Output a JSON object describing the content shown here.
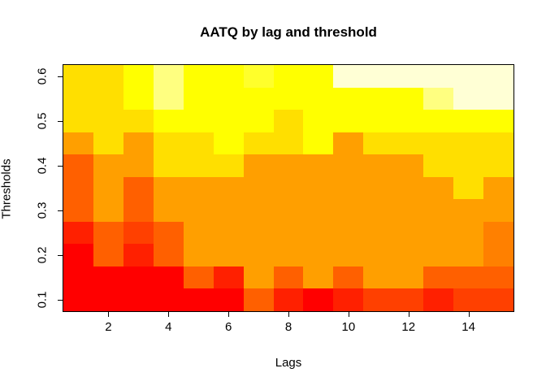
{
  "title": "AATQ by lag and threshold",
  "chart_data": {
    "type": "heatmap",
    "title": "AATQ by lag and threshold",
    "xlabel": "Lags",
    "ylabel": "Thresholds",
    "x_values": [
      1,
      2,
      3,
      4,
      5,
      6,
      7,
      8,
      9,
      10,
      11,
      12,
      13,
      14,
      15
    ],
    "y_values_bottom_to_top": [
      0.1,
      0.15,
      0.2,
      0.25,
      0.3,
      0.35,
      0.4,
      0.45,
      0.5,
      0.55,
      0.6
    ],
    "x_ticks": [
      "2",
      "4",
      "6",
      "8",
      "10",
      "12",
      "14"
    ],
    "x_tick_values": [
      2,
      4,
      6,
      8,
      10,
      12,
      14
    ],
    "y_ticks": [
      "0.1",
      "0.2",
      "0.3",
      "0.4",
      "0.5",
      "0.6"
    ],
    "y_tick_values": [
      0.1,
      0.2,
      0.3,
      0.4,
      0.5,
      0.6
    ],
    "xlim": [
      0.5,
      15.5
    ],
    "ylim": [
      0.075,
      0.625
    ],
    "grid_lines": false,
    "legend": "none",
    "border_color": "#000000",
    "palette_name": "heat-colors-12",
    "palette": [
      "#FF0000",
      "#FF2000",
      "#FF4000",
      "#FF6000",
      "#FF8000",
      "#FF9F00",
      "#FFBF00",
      "#FFDF00",
      "#FFFF00",
      "#FFFF2B",
      "#FFFF80",
      "#FFFFD5"
    ],
    "grid_rows_top_to_bottom_thresholds": [
      0.6,
      0.55,
      0.5,
      0.45,
      0.4,
      0.35,
      0.3,
      0.25,
      0.2,
      0.15,
      0.1
    ],
    "grid_rows_top_to_bottom": [
      [
        "#FFDF00",
        "#FFDF00",
        "#FFFF00",
        "#FFFF80",
        "#FFFF00",
        "#FFFF00",
        "#FFFF2B",
        "#FFFF00",
        "#FFFF00",
        "#FFFFD5",
        "#FFFFD5",
        "#FFFFD5",
        "#FFFFD5",
        "#FFFFD5",
        "#FFFFD5"
      ],
      [
        "#FFDF00",
        "#FFDF00",
        "#FFFF00",
        "#FFFF80",
        "#FFFF00",
        "#FFFF00",
        "#FFFF00",
        "#FFFF00",
        "#FFFF00",
        "#FFFF00",
        "#FFFF00",
        "#FFFF00",
        "#FFFF80",
        "#FFFFD5",
        "#FFFFD5"
      ],
      [
        "#FFDF00",
        "#FFDF00",
        "#FFDF00",
        "#FFFF00",
        "#FFFF00",
        "#FFFF00",
        "#FFFF00",
        "#FFDF00",
        "#FFFF00",
        "#FFFF00",
        "#FFFF00",
        "#FFFF00",
        "#FFFF00",
        "#FFFF00",
        "#FFFF00"
      ],
      [
        "#FF9F00",
        "#FFDF00",
        "#FF9F00",
        "#FFDF00",
        "#FFDF00",
        "#FFFF00",
        "#FFDF00",
        "#FFDF00",
        "#FFFF00",
        "#FF9F00",
        "#FFDF00",
        "#FFDF00",
        "#FFDF00",
        "#FFDF00",
        "#FFDF00"
      ],
      [
        "#FF6000",
        "#FF9F00",
        "#FF9F00",
        "#FFDF00",
        "#FFDF00",
        "#FFDF00",
        "#FF9F00",
        "#FF9F00",
        "#FF9F00",
        "#FF9F00",
        "#FF9F00",
        "#FF9F00",
        "#FFDF00",
        "#FFDF00",
        "#FFDF00"
      ],
      [
        "#FF6000",
        "#FF9F00",
        "#FF6000",
        "#FF9F00",
        "#FF9F00",
        "#FF9F00",
        "#FF9F00",
        "#FF9F00",
        "#FF9F00",
        "#FF9F00",
        "#FF9F00",
        "#FF9F00",
        "#FF9F00",
        "#FFDF00",
        "#FF9F00"
      ],
      [
        "#FF6000",
        "#FF9F00",
        "#FF6000",
        "#FF9F00",
        "#FF9F00",
        "#FF9F00",
        "#FF9F00",
        "#FF9F00",
        "#FF9F00",
        "#FF9F00",
        "#FF9F00",
        "#FF9F00",
        "#FF9F00",
        "#FF9F00",
        "#FF9F00"
      ],
      [
        "#FF2000",
        "#FF6000",
        "#FF4000",
        "#FF6000",
        "#FF9F00",
        "#FF9F00",
        "#FF9F00",
        "#FF9F00",
        "#FF9F00",
        "#FF9F00",
        "#FF9F00",
        "#FF9F00",
        "#FF9F00",
        "#FF9F00",
        "#FF8000"
      ],
      [
        "#FF0000",
        "#FF6000",
        "#FF2000",
        "#FF6000",
        "#FF9F00",
        "#FF9F00",
        "#FF9F00",
        "#FF9F00",
        "#FF9F00",
        "#FF9F00",
        "#FF9F00",
        "#FF9F00",
        "#FF9F00",
        "#FF9F00",
        "#FF8000"
      ],
      [
        "#FF0000",
        "#FF0000",
        "#FF0000",
        "#FF0000",
        "#FF6000",
        "#FF2000",
        "#FF9F00",
        "#FF6000",
        "#FF9F00",
        "#FF6000",
        "#FF9F00",
        "#FF9F00",
        "#FF6000",
        "#FF6000",
        "#FF6000"
      ],
      [
        "#FF0000",
        "#FF0000",
        "#FF0000",
        "#FF0000",
        "#FF0000",
        "#FF0000",
        "#FF6000",
        "#FF2000",
        "#FF0000",
        "#FF2000",
        "#FF4000",
        "#FF4000",
        "#FF2000",
        "#FF4000",
        "#FF4000"
      ]
    ]
  }
}
